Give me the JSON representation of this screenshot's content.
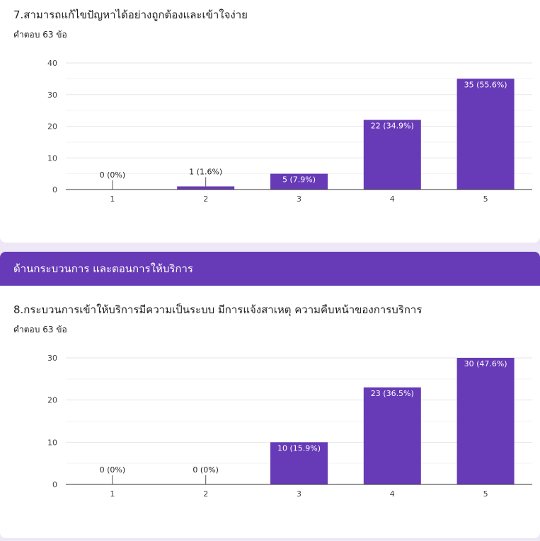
{
  "questions": [
    {
      "title": "7.สามารถแก้ไขปัญหาได้อย่างถูกต้องและเข้าใจง่าย",
      "response_count": "คำตอบ 63 ข้อ"
    },
    {
      "title": "8.กระบวนการเข้าให้บริการมีความเป็นระบบ มีการแจ้งสาเหตุ ความคืบหน้าของการบริการ",
      "response_count": "คำตอบ 63 ข้อ"
    }
  ],
  "section": {
    "title": "ด้านกระบวนการ และตอนการให้บริการ"
  },
  "colors": {
    "bar": "#673ab7",
    "section": "#673ab7",
    "background": "#ede7f6"
  },
  "chart_data": [
    {
      "type": "bar",
      "categories": [
        "1",
        "2",
        "3",
        "4",
        "5"
      ],
      "values": [
        0,
        1,
        5,
        22,
        35
      ],
      "labels": [
        "0 (0%)",
        "1 (1.6%)",
        "5 (7.9%)",
        "22 (34.9%)",
        "35 (55.6%)"
      ],
      "yticks": [
        "0",
        "10",
        "20",
        "30",
        "40"
      ],
      "ylim": [
        0,
        40
      ],
      "title": "",
      "xlabel": "",
      "ylabel": "",
      "grid": true,
      "legend": "none"
    },
    {
      "type": "bar",
      "categories": [
        "1",
        "2",
        "3",
        "4",
        "5"
      ],
      "values": [
        0,
        0,
        10,
        23,
        30
      ],
      "labels": [
        "0 (0%)",
        "0 (0%)",
        "10 (15.9%)",
        "23 (36.5%)",
        "30 (47.6%)"
      ],
      "yticks": [
        "0",
        "10",
        "20",
        "30"
      ],
      "ylim": [
        0,
        30
      ],
      "title": "",
      "xlabel": "",
      "ylabel": "",
      "grid": true,
      "legend": "none"
    }
  ]
}
